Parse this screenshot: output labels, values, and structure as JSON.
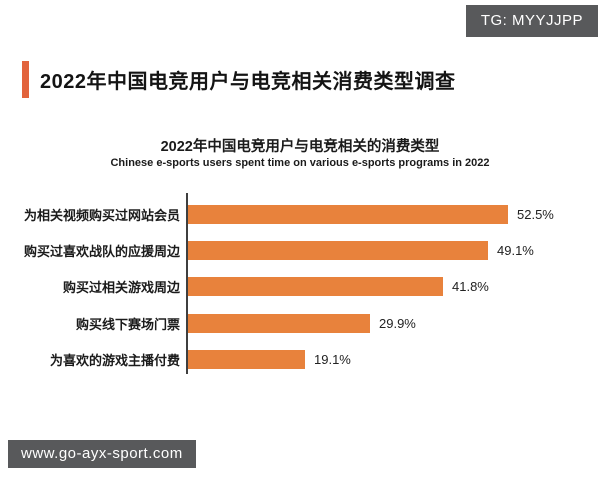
{
  "badges": {
    "telegram": "TG: MYYJJPP",
    "website": "www.go-ayx-sport.com",
    "badge_bg_color": "#58595b"
  },
  "header": {
    "title": "2022年中国电竞用户与电竞相关消费类型调查",
    "accent_color": "#e2633c"
  },
  "chart_data": {
    "type": "bar",
    "orientation": "horizontal",
    "title": "2022年中国电竞用户与电竞相关的消费类型",
    "subtitle": "Chinese e-sports users spent time on various e-sports programs in 2022",
    "categories": [
      "为相关视频购买过网站会员",
      "购买过喜欢战队的应援周边",
      "购买过相关游戏周边",
      "购买线下赛场门票",
      "为喜欢的游戏主播付费"
    ],
    "values": [
      52.5,
      49.1,
      41.8,
      29.9,
      19.1
    ],
    "value_labels": [
      "52.5%",
      "49.1%",
      "41.8%",
      "29.9%",
      "19.1%"
    ],
    "xlim": [
      0,
      60
    ],
    "bar_color": "#e8823c",
    "grid": false,
    "legend": false,
    "axis_line_color": "#3f3f3f"
  }
}
